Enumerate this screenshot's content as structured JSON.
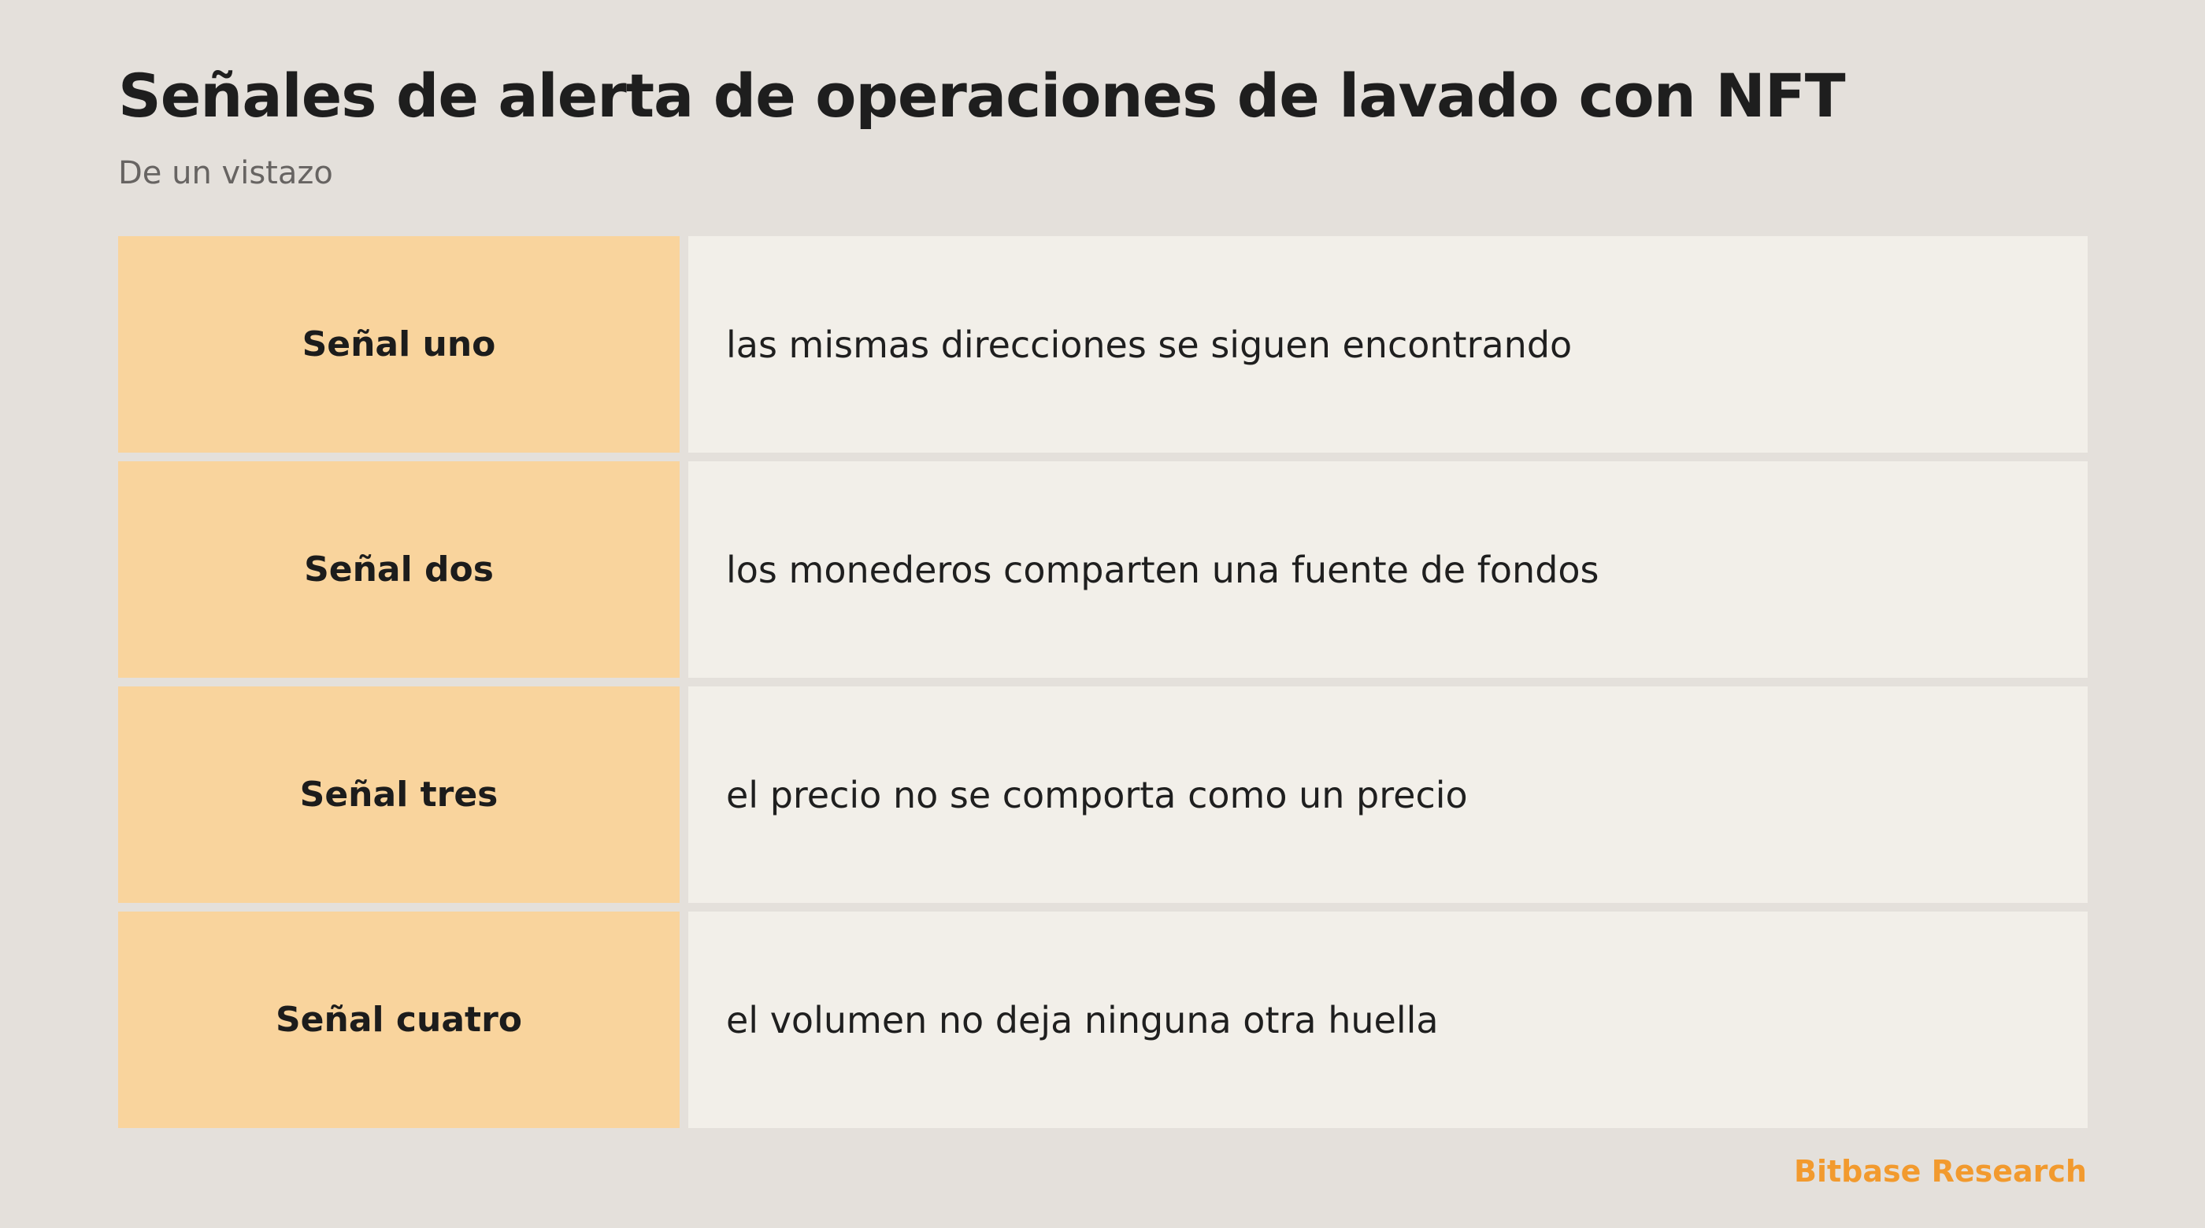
{
  "header": {
    "title": "Señales de alerta de operaciones de lavado con NFT",
    "subtitle": "De un vistazo"
  },
  "rows": [
    {
      "label": "Señal uno",
      "description": "las mismas direcciones se siguen encontrando"
    },
    {
      "label": "Señal dos",
      "description": "los monederos comparten una fuente de fondos"
    },
    {
      "label": "Señal tres",
      "description": "el precio no se comporta como un precio"
    },
    {
      "label": "Señal cuatro",
      "description": "el volumen no deja ninguna otra huella"
    }
  ],
  "footer": {
    "brand": "Bitbase Research"
  },
  "colors": {
    "background": "#e4e0db",
    "label_cell": "#f9d49d",
    "desc_cell": "#f2efe9",
    "brand_accent": "#f29a2e"
  }
}
